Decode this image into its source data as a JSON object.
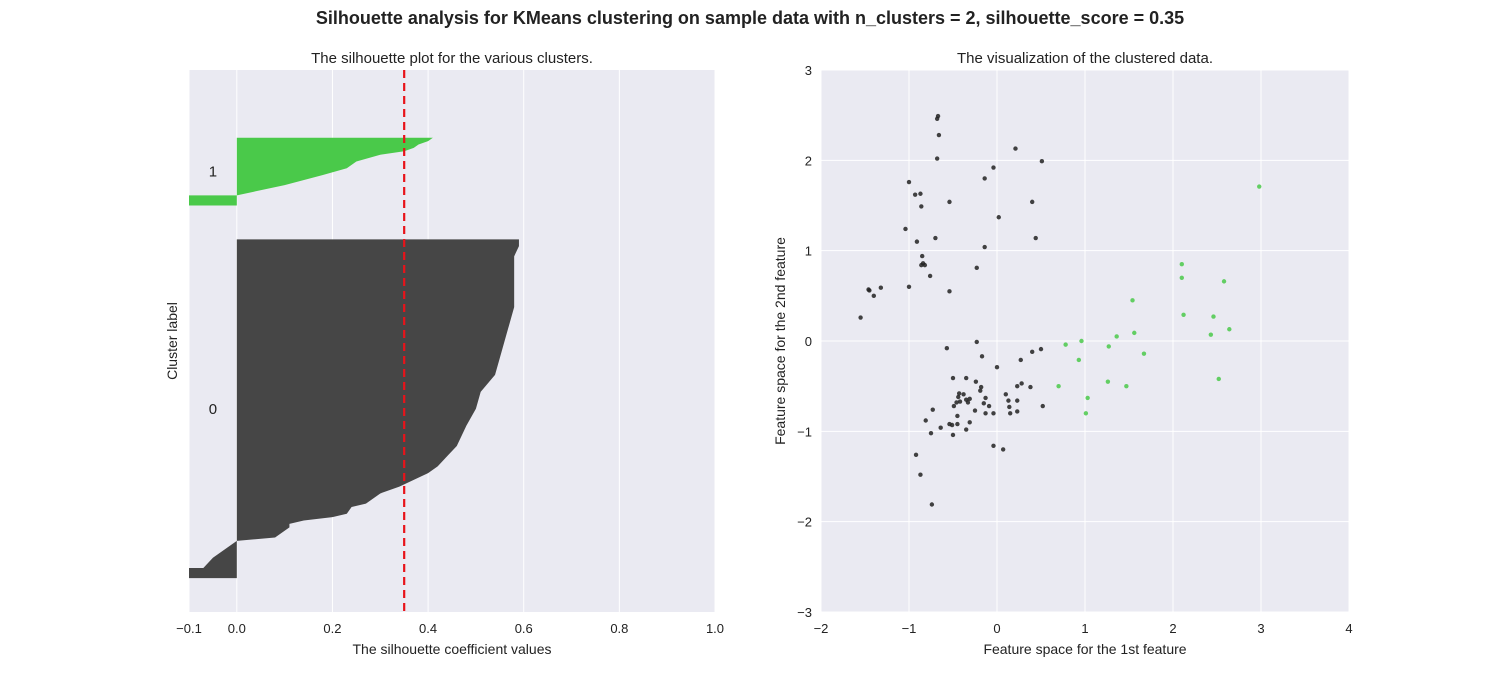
{
  "figure": {
    "suptitle": "Silhouette analysis for KMeans clustering on sample data with n_clusters = 2, silhouette_score = 0.35"
  },
  "colors": {
    "axes_bg": "#eaeaf2",
    "grid": "#ffffff",
    "cluster_0": "#464646",
    "cluster_1": "#4ac94a",
    "mean_line": "#e8131a",
    "text": "#222222"
  },
  "chart_data": [
    {
      "type": "area",
      "title": "The silhouette plot for the various clusters.",
      "xlabel": "The silhouette coefficient values",
      "ylabel": "Cluster label",
      "xlim": [
        -0.1,
        1.0
      ],
      "ylim": [
        0,
        160
      ],
      "xticks": [
        -0.1,
        0.0,
        0.2,
        0.4,
        0.6,
        0.8,
        1.0
      ],
      "xtick_labels": [
        "−0.1",
        "0.0",
        "0.2",
        "0.4",
        "0.6",
        "0.8",
        "1.0"
      ],
      "grid": true,
      "silhouette_avg": 0.35,
      "clusters": [
        {
          "label": "0",
          "color": "#464646",
          "y_range": [
            10,
            110
          ],
          "profile": [
            [
              10,
              -0.1
            ],
            [
              13,
              -0.1
            ],
            [
              13,
              -0.07
            ],
            [
              16,
              -0.05
            ],
            [
              18,
              -0.03
            ],
            [
              20,
              -0.01
            ],
            [
              21,
              0.0
            ],
            [
              22,
              0.08
            ],
            [
              24,
              0.1
            ],
            [
              25,
              0.11
            ],
            [
              26,
              0.11
            ],
            [
              27,
              0.14
            ],
            [
              28,
              0.2
            ],
            [
              29,
              0.23
            ],
            [
              31,
              0.24
            ],
            [
              32,
              0.27
            ],
            [
              33,
              0.28
            ],
            [
              35,
              0.3
            ],
            [
              37,
              0.34
            ],
            [
              39,
              0.37
            ],
            [
              41,
              0.4
            ],
            [
              43,
              0.42
            ],
            [
              46,
              0.44
            ],
            [
              49,
              0.46
            ],
            [
              52,
              0.47
            ],
            [
              55,
              0.48
            ],
            [
              60,
              0.5
            ],
            [
              65,
              0.51
            ],
            [
              70,
              0.54
            ],
            [
              75,
              0.55
            ],
            [
              80,
              0.56
            ],
            [
              85,
              0.57
            ],
            [
              90,
              0.58
            ],
            [
              95,
              0.58
            ],
            [
              100,
              0.58
            ],
            [
              105,
              0.58
            ],
            [
              108,
              0.59
            ],
            [
              110,
              0.59
            ]
          ]
        },
        {
          "label": "1",
          "color": "#4ac94a",
          "y_range": [
            120,
            140
          ],
          "profile": [
            [
              120,
              -0.1
            ],
            [
              123,
              -0.1
            ],
            [
              123,
              0.0
            ],
            [
              126,
              0.1
            ],
            [
              129,
              0.18
            ],
            [
              131,
              0.23
            ],
            [
              133,
              0.25
            ],
            [
              135,
              0.3
            ],
            [
              136,
              0.35
            ],
            [
              137,
              0.37
            ],
            [
              138,
              0.38
            ],
            [
              139,
              0.4
            ],
            [
              140,
              0.41
            ]
          ]
        }
      ]
    },
    {
      "type": "scatter",
      "title": "The visualization of the clustered data.",
      "xlabel": "Feature space for the 1st feature",
      "ylabel": "Feature space for the 2nd feature",
      "xlim": [
        -2,
        4
      ],
      "ylim": [
        -3,
        3
      ],
      "xticks": [
        -2,
        -1,
        0,
        1,
        2,
        3,
        4
      ],
      "xtick_labels": [
        "−2",
        "−1",
        "0",
        "1",
        "2",
        "3",
        "4"
      ],
      "yticks": [
        -3,
        -2,
        -1,
        0,
        1,
        2,
        3
      ],
      "ytick_labels": [
        "−3",
        "−2",
        "−1",
        "0",
        "1",
        "2",
        "3"
      ],
      "grid": true,
      "series": [
        {
          "color": "#222222",
          "points": [
            [
              -0.67,
              2.49
            ],
            [
              -0.68,
              2.46
            ],
            [
              -0.66,
              2.28
            ],
            [
              0.21,
              2.13
            ],
            [
              -0.68,
              2.02
            ],
            [
              0.51,
              1.99
            ],
            [
              -0.04,
              1.92
            ],
            [
              -0.14,
              1.8
            ],
            [
              -1.0,
              1.76
            ],
            [
              -0.93,
              1.62
            ],
            [
              -0.87,
              1.63
            ],
            [
              -0.54,
              1.54
            ],
            [
              0.4,
              1.54
            ],
            [
              -0.86,
              1.49
            ],
            [
              0.02,
              1.37
            ],
            [
              -1.04,
              1.24
            ],
            [
              -0.7,
              1.14
            ],
            [
              0.44,
              1.14
            ],
            [
              -0.91,
              1.1
            ],
            [
              -0.14,
              1.04
            ],
            [
              -0.85,
              0.94
            ],
            [
              -0.84,
              0.86
            ],
            [
              -0.86,
              0.84
            ],
            [
              -0.82,
              0.84
            ],
            [
              -0.23,
              0.81
            ],
            [
              -0.76,
              0.72
            ],
            [
              -1.0,
              0.6
            ],
            [
              -1.32,
              0.59
            ],
            [
              -1.46,
              0.57
            ],
            [
              -1.45,
              0.56
            ],
            [
              -0.54,
              0.55
            ],
            [
              -1.4,
              0.5
            ],
            [
              -1.55,
              0.26
            ],
            [
              -0.23,
              -0.01
            ],
            [
              -0.57,
              -0.08
            ],
            [
              0.4,
              -0.12
            ],
            [
              0.5,
              -0.09
            ],
            [
              -0.17,
              -0.17
            ],
            [
              0.27,
              -0.21
            ],
            [
              0.0,
              -0.29
            ],
            [
              -0.35,
              -0.41
            ],
            [
              -0.5,
              -0.41
            ],
            [
              -0.24,
              -0.45
            ],
            [
              0.28,
              -0.47
            ],
            [
              0.23,
              -0.5
            ],
            [
              0.38,
              -0.51
            ],
            [
              -0.18,
              -0.51
            ],
            [
              -0.19,
              -0.55
            ],
            [
              -0.43,
              -0.58
            ],
            [
              -0.38,
              -0.59
            ],
            [
              0.1,
              -0.59
            ],
            [
              -0.44,
              -0.62
            ],
            [
              -0.13,
              -0.63
            ],
            [
              -0.31,
              -0.64
            ],
            [
              -0.35,
              -0.65
            ],
            [
              -0.42,
              -0.67
            ],
            [
              0.13,
              -0.66
            ],
            [
              0.23,
              -0.66
            ],
            [
              -0.33,
              -0.68
            ],
            [
              -0.46,
              -0.68
            ],
            [
              -0.15,
              -0.69
            ],
            [
              -0.49,
              -0.72
            ],
            [
              0.52,
              -0.72
            ],
            [
              -0.09,
              -0.72
            ],
            [
              0.14,
              -0.73
            ],
            [
              -0.73,
              -0.76
            ],
            [
              -0.25,
              -0.77
            ],
            [
              0.23,
              -0.78
            ],
            [
              -0.13,
              -0.8
            ],
            [
              -0.04,
              -0.8
            ],
            [
              0.15,
              -0.8
            ],
            [
              -0.45,
              -0.83
            ],
            [
              -0.31,
              -0.9
            ],
            [
              -0.45,
              -0.92
            ],
            [
              -0.51,
              -0.93
            ],
            [
              -0.54,
              -0.92
            ],
            [
              -0.81,
              -0.88
            ],
            [
              -0.64,
              -0.96
            ],
            [
              -0.35,
              -0.98
            ],
            [
              -0.75,
              -1.02
            ],
            [
              -0.5,
              -1.04
            ],
            [
              -0.04,
              -1.16
            ],
            [
              0.07,
              -1.2
            ],
            [
              -0.92,
              -1.26
            ],
            [
              -0.87,
              -1.48
            ],
            [
              -0.74,
              -1.81
            ]
          ]
        },
        {
          "color": "#4ac94a",
          "points": [
            [
              2.98,
              1.71
            ],
            [
              2.1,
              0.85
            ],
            [
              2.1,
              0.7
            ],
            [
              2.58,
              0.66
            ],
            [
              1.54,
              0.45
            ],
            [
              2.12,
              0.29
            ],
            [
              2.46,
              0.27
            ],
            [
              2.64,
              0.13
            ],
            [
              1.56,
              0.09
            ],
            [
              2.43,
              0.07
            ],
            [
              1.36,
              0.05
            ],
            [
              0.96,
              0.0
            ],
            [
              0.78,
              -0.04
            ],
            [
              1.27,
              -0.06
            ],
            [
              1.67,
              -0.14
            ],
            [
              0.93,
              -0.21
            ],
            [
              1.26,
              -0.45
            ],
            [
              2.52,
              -0.42
            ],
            [
              0.7,
              -0.5
            ],
            [
              1.47,
              -0.5
            ],
            [
              1.03,
              -0.63
            ],
            [
              1.01,
              -0.8
            ]
          ]
        }
      ]
    }
  ]
}
